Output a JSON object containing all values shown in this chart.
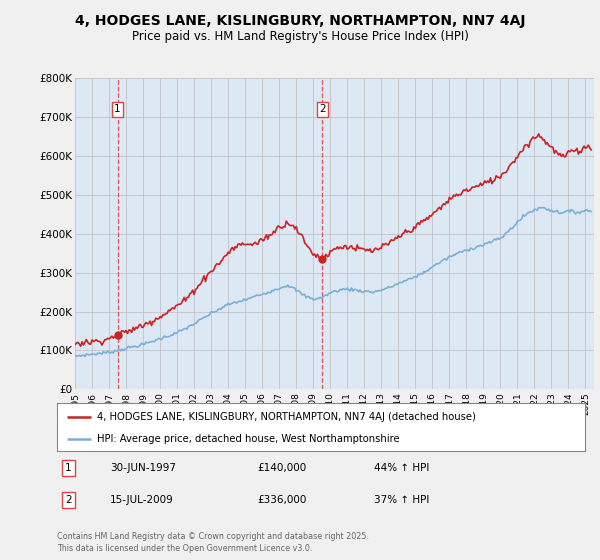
{
  "title": "4, HODGES LANE, KISLINGBURY, NORTHAMPTON, NN7 4AJ",
  "subtitle": "Price paid vs. HM Land Registry's House Price Index (HPI)",
  "legend_line1": "4, HODGES LANE, KISLINGBURY, NORTHAMPTON, NN7 4AJ (detached house)",
  "legend_line2": "HPI: Average price, detached house, West Northamptonshire",
  "footer": "Contains HM Land Registry data © Crown copyright and database right 2025.\nThis data is licensed under the Open Government Licence v3.0.",
  "transactions": [
    {
      "num": 1,
      "date": "30-JUN-1997",
      "price": "£140,000",
      "hpi": "44% ↑ HPI"
    },
    {
      "num": 2,
      "date": "15-JUL-2009",
      "price": "£336,000",
      "hpi": "37% ↑ HPI"
    }
  ],
  "marker1_x": 1997.5,
  "marker2_x": 2009.54,
  "marker1_y": 140000,
  "marker2_y": 336000,
  "red_color": "#cc2222",
  "blue_color": "#7ab0d4",
  "dashed_color": "#dd4444",
  "background_color": "#f0f0f0",
  "plot_bg_color": "#dce9f5",
  "ylim": [
    0,
    800000
  ],
  "xlim": [
    1995.0,
    2025.5
  ],
  "title_fontsize": 10,
  "subtitle_fontsize": 9
}
